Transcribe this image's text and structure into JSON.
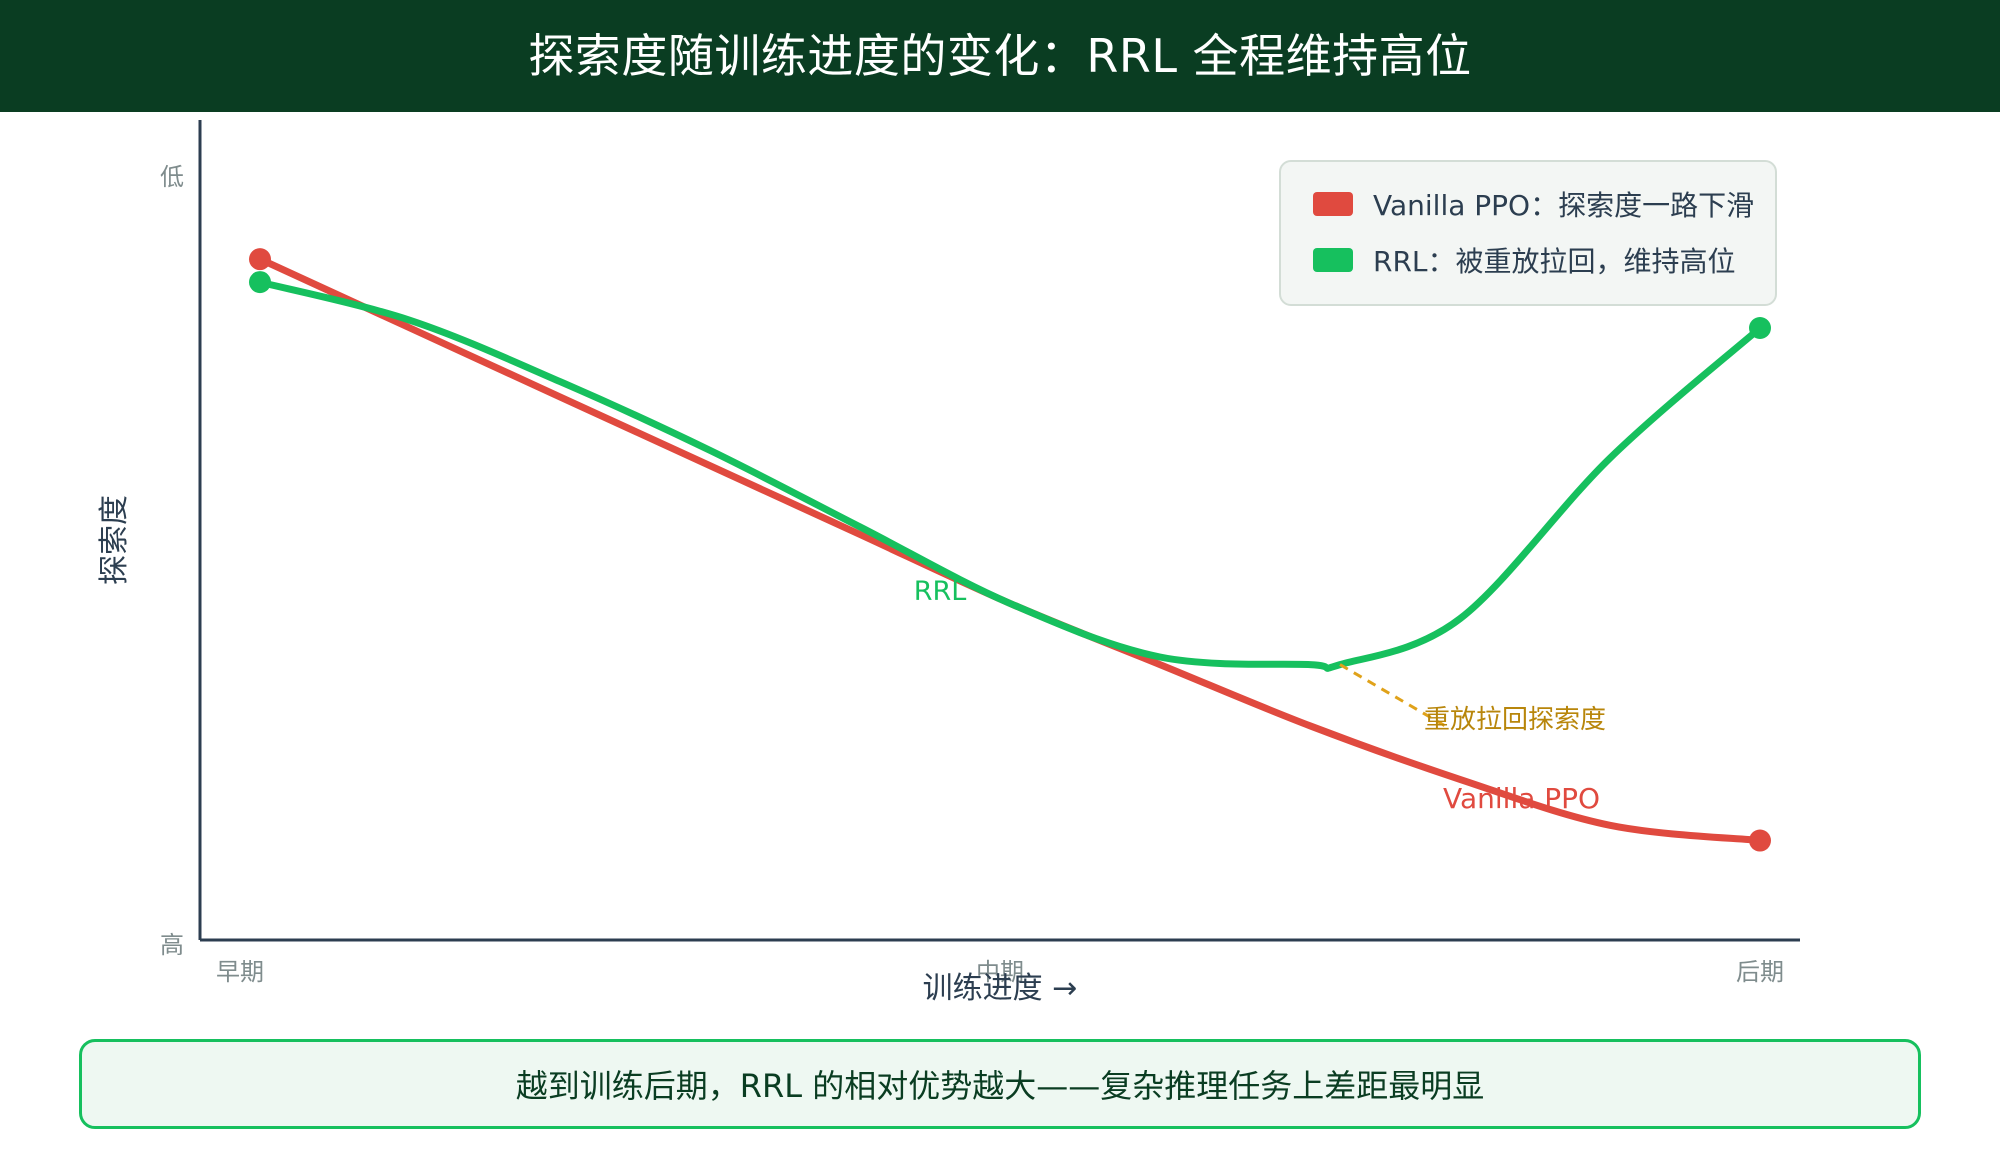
{
  "title": "探索度随训练进度的变化：RRL 全程维持高位",
  "chart_data": {
    "type": "line",
    "title": "探索度随训练进度的变化：RRL 全程维持高位",
    "xlabel": "训练进度 →",
    "ylabel": "探索度",
    "x_ticks": [
      "早期",
      "中期",
      "后期"
    ],
    "y_ticks": [
      "低",
      "高"
    ],
    "y_range": [
      0,
      100
    ],
    "x_range": [
      0,
      100
    ],
    "grid": false,
    "legend_position": "top-right",
    "series": [
      {
        "key": "ppo",
        "name": "Vanilla PPO",
        "legend_label": "Vanilla PPO：探索度一路下滑",
        "inline_label": "Vanilla PPO",
        "color": "#e04a3f",
        "x": [
          0,
          10,
          20,
          30,
          40,
          50,
          60,
          70,
          80,
          90,
          100
        ],
        "y": [
          89,
          80,
          71,
          62,
          53,
          44,
          36,
          28,
          21,
          15,
          13
        ]
      },
      {
        "key": "rrl",
        "name": "RRL",
        "legend_label": "RRL：被重放拉回，维持高位",
        "inline_label": "RRL",
        "color": "#16c05e",
        "x": [
          0,
          10,
          20,
          30,
          40,
          50,
          60,
          70,
          72,
          80,
          90,
          100
        ],
        "y": [
          86,
          81,
          73,
          64,
          54,
          44,
          37,
          36,
          36,
          42,
          63,
          80
        ]
      }
    ],
    "annotation": {
      "text": "重放拉回探索度",
      "color": "#b8860b",
      "from": [
        72,
        36
      ],
      "to": [
        79,
        28
      ]
    }
  },
  "footer": {
    "text": "越到训练后期，RRL 的相对优势越大——复杂推理任务上差距最明显"
  }
}
